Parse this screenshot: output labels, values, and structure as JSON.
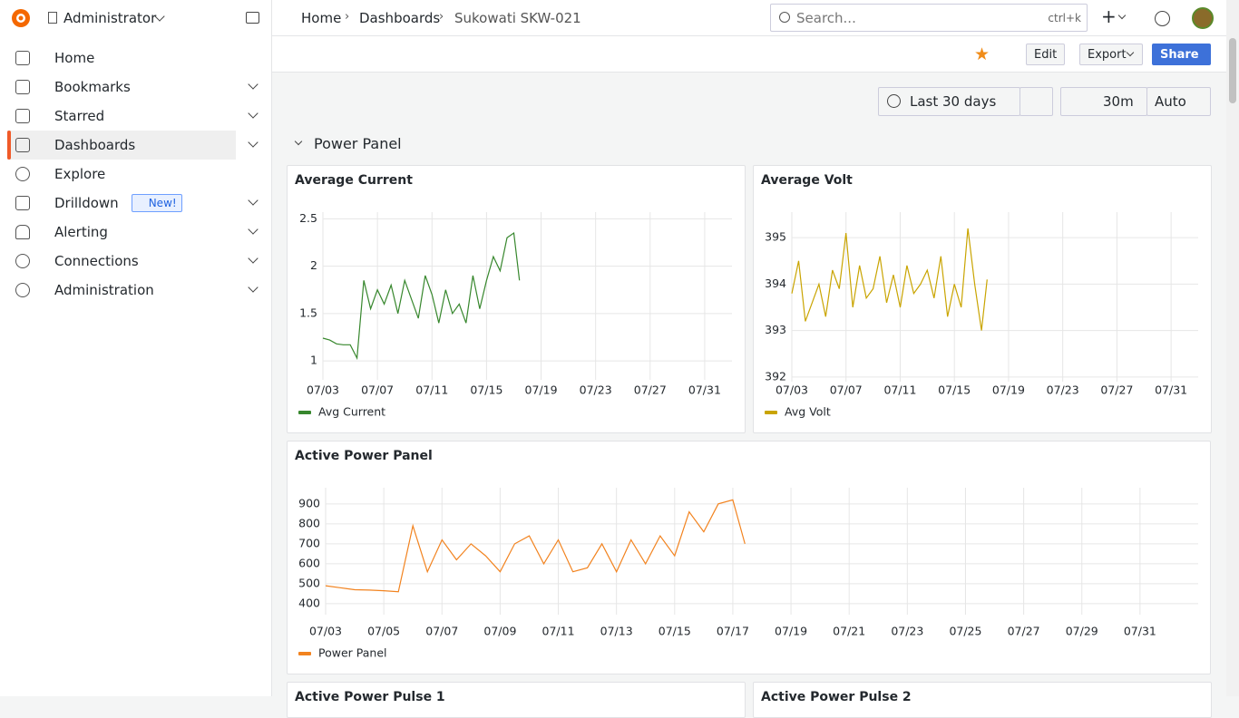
{
  "org": "Administrator",
  "nav": [
    "Home",
    "Bookmarks",
    "Starred",
    "Dashboards",
    "Explore",
    "Drilldown",
    "Alerting",
    "Connections",
    "Administration"
  ],
  "badge": "New!",
  "breadcrumbs": [
    "Home",
    "Dashboards",
    "Sukowati SKW-021"
  ],
  "search": {
    "placeholder": "Search...",
    "shortcut": "ctrl+k"
  },
  "toolbar": [
    "Edit",
    "Export",
    "Share"
  ],
  "time_range": "Last 30 days",
  "refresh": "30m",
  "refresh_mode": "Auto",
  "row_title": "Power Panel",
  "chart_data": [
    {
      "type": "line",
      "title": "Average Current",
      "x": [
        "07/03 00:00",
        "07/03 12:00",
        "07/04 00:00",
        "07/04 12:00",
        "07/05 00:00",
        "07/05 12:00",
        "07/06 00:00",
        "07/06 12:00",
        "07/07 00:00",
        "07/07 12:00",
        "07/08 00:00",
        "07/08 12:00",
        "07/09 00:00",
        "07/09 12:00",
        "07/10 00:00",
        "07/10 12:00",
        "07/11 00:00",
        "07/11 12:00",
        "07/12 00:00",
        "07/12 12:00",
        "07/13 00:00",
        "07/13 12:00",
        "07/14 00:00",
        "07/14 12:00",
        "07/15 00:00",
        "07/15 12:00",
        "07/16 00:00",
        "07/16 12:00",
        "07/17 00:00",
        "07/17 10:00"
      ],
      "series": [
        {
          "name": "Avg Current",
          "color": "#37872d",
          "values": [
            1.24,
            1.22,
            1.18,
            1.17,
            1.17,
            1.03,
            1.85,
            1.55,
            1.75,
            1.6,
            1.8,
            1.5,
            1.85,
            1.65,
            1.45,
            1.9,
            1.7,
            1.4,
            1.75,
            1.5,
            1.6,
            1.4,
            1.9,
            1.55,
            1.85,
            2.1,
            1.95,
            2.3,
            2.35,
            1.85
          ]
        }
      ],
      "xlim": [
        "07/03 00:00",
        "08/02 00:00"
      ],
      "xticks": [
        {
          "value": "07/03 00:00",
          "label": "07/03"
        },
        {
          "value": "07/07 00:00",
          "label": "07/07"
        },
        {
          "value": "07/11 00:00",
          "label": "07/11"
        },
        {
          "value": "07/15 00:00",
          "label": "07/15"
        },
        {
          "value": "07/19 00:00",
          "label": "07/19"
        },
        {
          "value": "07/23 00:00",
          "label": "07/23"
        },
        {
          "value": "07/27 00:00",
          "label": "07/27"
        },
        {
          "value": "07/31 00:00",
          "label": "07/31"
        }
      ],
      "ylim": [
        0.8,
        2.57
      ],
      "yticks": [
        1,
        1.5,
        2,
        2.5
      ],
      "grid": true
    },
    {
      "type": "line",
      "title": "Average Volt",
      "x": [
        "07/03 00:00",
        "07/03 12:00",
        "07/04 00:00",
        "07/04 12:00",
        "07/05 00:00",
        "07/05 12:00",
        "07/06 00:00",
        "07/06 12:00",
        "07/07 00:00",
        "07/07 12:00",
        "07/08 00:00",
        "07/08 12:00",
        "07/09 00:00",
        "07/09 12:00",
        "07/10 00:00",
        "07/10 12:00",
        "07/11 00:00",
        "07/11 12:00",
        "07/12 00:00",
        "07/12 12:00",
        "07/13 00:00",
        "07/13 12:00",
        "07/14 00:00",
        "07/14 12:00",
        "07/15 00:00",
        "07/15 12:00",
        "07/16 00:00",
        "07/16 12:00",
        "07/17 00:00",
        "07/17 10:00"
      ],
      "series": [
        {
          "name": "Avg Volt",
          "color": "#c9a400",
          "values": [
            393.8,
            394.5,
            393.2,
            393.6,
            394.0,
            393.3,
            394.3,
            393.9,
            395.1,
            393.5,
            394.4,
            393.7,
            393.9,
            394.6,
            393.6,
            394.2,
            393.5,
            394.4,
            393.8,
            394.0,
            394.3,
            393.7,
            394.6,
            393.3,
            394.0,
            393.5,
            395.2,
            394.0,
            393.0,
            394.1
          ]
        }
      ],
      "xlim": [
        "07/03 00:00",
        "08/02 00:00"
      ],
      "xticks": [
        {
          "value": "07/03 00:00",
          "label": "07/03"
        },
        {
          "value": "07/07 00:00",
          "label": "07/07"
        },
        {
          "value": "07/11 00:00",
          "label": "07/11"
        },
        {
          "value": "07/15 00:00",
          "label": "07/15"
        },
        {
          "value": "07/19 00:00",
          "label": "07/19"
        },
        {
          "value": "07/23 00:00",
          "label": "07/23"
        },
        {
          "value": "07/27 00:00",
          "label": "07/27"
        },
        {
          "value": "07/31 00:00",
          "label": "07/31"
        }
      ],
      "ylim": [
        391.9,
        395.55
      ],
      "yticks": [
        392,
        393,
        394,
        395
      ],
      "grid": true
    },
    {
      "type": "line",
      "title": "Active Power Panel",
      "x": [
        "07/03 00:00",
        "07/03 12:00",
        "07/04 00:00",
        "07/04 12:00",
        "07/05 00:00",
        "07/05 12:00",
        "07/06 00:00",
        "07/06 12:00",
        "07/07 00:00",
        "07/07 12:00",
        "07/08 00:00",
        "07/08 12:00",
        "07/09 00:00",
        "07/09 12:00",
        "07/10 00:00",
        "07/10 12:00",
        "07/11 00:00",
        "07/11 12:00",
        "07/12 00:00",
        "07/12 12:00",
        "07/13 00:00",
        "07/13 12:00",
        "07/14 00:00",
        "07/14 12:00",
        "07/15 00:00",
        "07/15 12:00",
        "07/16 00:00",
        "07/16 12:00",
        "07/17 00:00",
        "07/17 10:00"
      ],
      "series": [
        {
          "name": "Power Panel",
          "color": "#f2831f",
          "values": [
            490,
            480,
            470,
            468,
            465,
            460,
            790,
            560,
            720,
            620,
            700,
            640,
            560,
            700,
            740,
            600,
            720,
            560,
            580,
            700,
            560,
            720,
            600,
            740,
            640,
            860,
            760,
            900,
            920,
            700
          ]
        }
      ],
      "xlim": [
        "07/03 00:00",
        "08/02 00:00"
      ],
      "xticks": [
        {
          "value": "07/03 00:00",
          "label": "07/03"
        },
        {
          "value": "07/05 00:00",
          "label": "07/05"
        },
        {
          "value": "07/07 00:00",
          "label": "07/07"
        },
        {
          "value": "07/09 00:00",
          "label": "07/09"
        },
        {
          "value": "07/11 00:00",
          "label": "07/11"
        },
        {
          "value": "07/13 00:00",
          "label": "07/13"
        },
        {
          "value": "07/15 00:00",
          "label": "07/15"
        },
        {
          "value": "07/17 00:00",
          "label": "07/17"
        },
        {
          "value": "07/19 00:00",
          "label": "07/19"
        },
        {
          "value": "07/21 00:00",
          "label": "07/21"
        },
        {
          "value": "07/23 00:00",
          "label": "07/23"
        },
        {
          "value": "07/25 00:00",
          "label": "07/25"
        },
        {
          "value": "07/27 00:00",
          "label": "07/27"
        },
        {
          "value": "07/29 00:00",
          "label": "07/29"
        },
        {
          "value": "07/31 00:00",
          "label": "07/31"
        }
      ],
      "ylim": [
        345,
        981
      ],
      "yticks": [
        400,
        500,
        600,
        700,
        800,
        900
      ],
      "grid": true
    }
  ],
  "partial_panels": [
    "Active Power Pulse 1",
    "Active Power Pulse 2"
  ]
}
